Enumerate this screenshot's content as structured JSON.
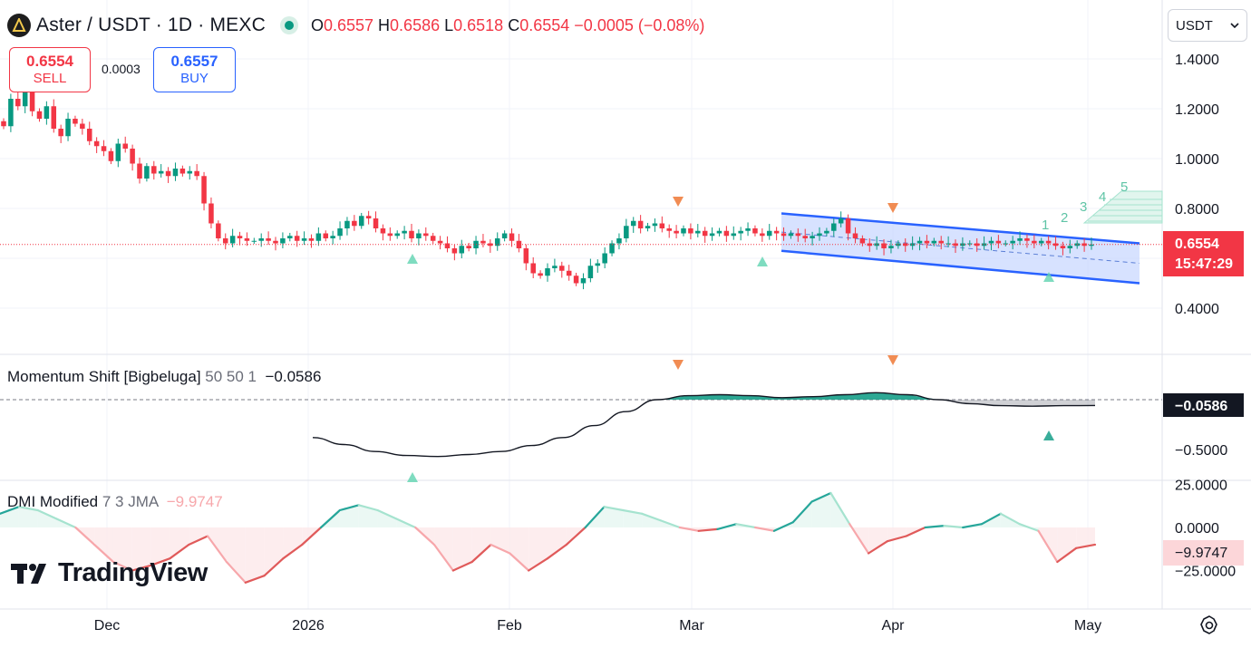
{
  "header": {
    "symbol": "Aster",
    "title": "Aster / USDT · 1D · MEXC",
    "open_label": "O",
    "open": "0.6557",
    "high_label": "H",
    "high": "0.6586",
    "low_label": "L",
    "low": "0.6518",
    "close_label": "C",
    "close": "0.6554",
    "change": "−0.0005 (−0.08%)"
  },
  "trade": {
    "sell_price": "0.6554",
    "sell_label": "SELL",
    "spread": "0.0003",
    "buy_price": "0.6557",
    "buy_label": "BUY"
  },
  "currency_select": {
    "value": "USDT"
  },
  "price_pane": {
    "price_axis": [
      "1.4000",
      "1.2000",
      "1.0000",
      "0.8000",
      "0.4000"
    ],
    "last_price_tag": "0.6554",
    "countdown_tag": "15:47:29",
    "wave_labels": [
      "1",
      "2",
      "3",
      "4",
      "5"
    ]
  },
  "momentum": {
    "title": "Momentum Shift [Bigbeluga]",
    "params": "50 50 1",
    "value": "−0.0586",
    "axis": [
      "−0.5000"
    ],
    "value_tag": "−0.0586"
  },
  "dmi": {
    "title": "DMI Modified",
    "params": "7 3 JMA",
    "value": "−9.9747",
    "axis": [
      "25.0000",
      "0.0000",
      "−25.0000"
    ],
    "value_tag": "−9.9747"
  },
  "time_axis": [
    "Dec",
    "2026",
    "Feb",
    "Mar",
    "Apr",
    "May"
  ],
  "branding": {
    "logo_text": "TradingView"
  },
  "colors": {
    "up": "#089981",
    "down": "#f23645",
    "channel": "#2962ff",
    "channel_fill": "#c9d8ff",
    "wave": "#a5e3cf"
  },
  "chart_data": [
    {
      "type": "candlestick",
      "title": "Aster / USDT · 1D · MEXC",
      "ylim": [
        0.3,
        1.5
      ],
      "y_ticks": [
        1.4,
        1.2,
        1.0,
        0.8,
        0.4
      ],
      "x_ticks": [
        "Dec",
        "2026",
        "Feb",
        "Mar",
        "Apr",
        "May"
      ],
      "x_range": [
        "2025-11-17",
        "2026-05-01"
      ],
      "last_price": 0.6554,
      "series": [
        {
          "ohlc_close": [
            1.13,
            1.24,
            1.21,
            1.27,
            1.19,
            1.16,
            1.21,
            1.12,
            1.09,
            1.16,
            1.14,
            1.12,
            1.07,
            1.05,
            1.03,
            0.99,
            1.06,
            1.04,
            0.98,
            0.92,
            0.97,
            0.94,
            0.95,
            0.93,
            0.96,
            0.94,
            0.95,
            0.93,
            0.82,
            0.74,
            0.68,
            0.66,
            0.69,
            0.68,
            0.67,
            0.67,
            0.68,
            0.67,
            0.66,
            0.68,
            0.69,
            0.67,
            0.68,
            0.67,
            0.7,
            0.68,
            0.69,
            0.72,
            0.75,
            0.73,
            0.77,
            0.76,
            0.72,
            0.7,
            0.69,
            0.7,
            0.71,
            0.68,
            0.7,
            0.69,
            0.67,
            0.66,
            0.64,
            0.62,
            0.65,
            0.64,
            0.67,
            0.66,
            0.65,
            0.68,
            0.7,
            0.67,
            0.64,
            0.58,
            0.54,
            0.53,
            0.56,
            0.57,
            0.55,
            0.53,
            0.5,
            0.52,
            0.57,
            0.58,
            0.62,
            0.66,
            0.68,
            0.73,
            0.75,
            0.72,
            0.73,
            0.74,
            0.72,
            0.71,
            0.7,
            0.72,
            0.7,
            0.71,
            0.69,
            0.7,
            0.71,
            0.69,
            0.7,
            0.71,
            0.72,
            0.7,
            0.69,
            0.71,
            0.7,
            0.69,
            0.7,
            0.69,
            0.68,
            0.69,
            0.7,
            0.71,
            0.74,
            0.76,
            0.7,
            0.68,
            0.66,
            0.65,
            0.66,
            0.64,
            0.65,
            0.66,
            0.65,
            0.66,
            0.67,
            0.66,
            0.67,
            0.66,
            0.66,
            0.65,
            0.66,
            0.66,
            0.65,
            0.66,
            0.67,
            0.66,
            0.66,
            0.67,
            0.68,
            0.67,
            0.66,
            0.67,
            0.66,
            0.65,
            0.64,
            0.65,
            0.66,
            0.65,
            0.6554
          ]
        }
      ],
      "annotations": {
        "channel_upper": [
          [
            0.78,
            0.66
          ]
        ],
        "channel_lower": [
          [
            0.63,
            0.5
          ]
        ],
        "buy_signals": 4,
        "sell_signals": 2
      }
    },
    {
      "type": "area",
      "title": "Momentum Shift [Bigbeluga] 50 50 1",
      "y_ticks": [
        -0.5
      ],
      "last_value": -0.0586,
      "series": [
        {
          "values": [
            -0.38,
            -0.45,
            -0.52,
            -0.56,
            -0.57,
            -0.55,
            -0.52,
            -0.46,
            -0.38,
            -0.26,
            -0.12,
            0.0,
            0.04,
            0.05,
            0.04,
            0.02,
            0.03,
            0.05,
            0.07,
            0.05,
            0.0,
            -0.04,
            -0.06,
            -0.065,
            -0.06,
            -0.0586
          ]
        }
      ]
    },
    {
      "type": "line",
      "title": "DMI Modified 7 3 JMA",
      "y_ticks": [
        25,
        0,
        -25
      ],
      "last_value": -9.9747,
      "series": [
        {
          "values": [
            8,
            12,
            10,
            5,
            0,
            -10,
            -20,
            -25,
            -22,
            -18,
            -10,
            -5,
            -20,
            -32,
            -28,
            -18,
            -10,
            0,
            10,
            13,
            10,
            5,
            0,
            -10,
            -25,
            -20,
            -10,
            -15,
            -25,
            -18,
            -10,
            0,
            12,
            10,
            8,
            4,
            0,
            -2,
            -1,
            2,
            0,
            -2,
            3,
            15,
            20,
            2,
            -15,
            -8,
            -5,
            0,
            1,
            0,
            2,
            8,
            2,
            -2,
            -20,
            -12,
            -9.9747
          ]
        }
      ]
    }
  ]
}
